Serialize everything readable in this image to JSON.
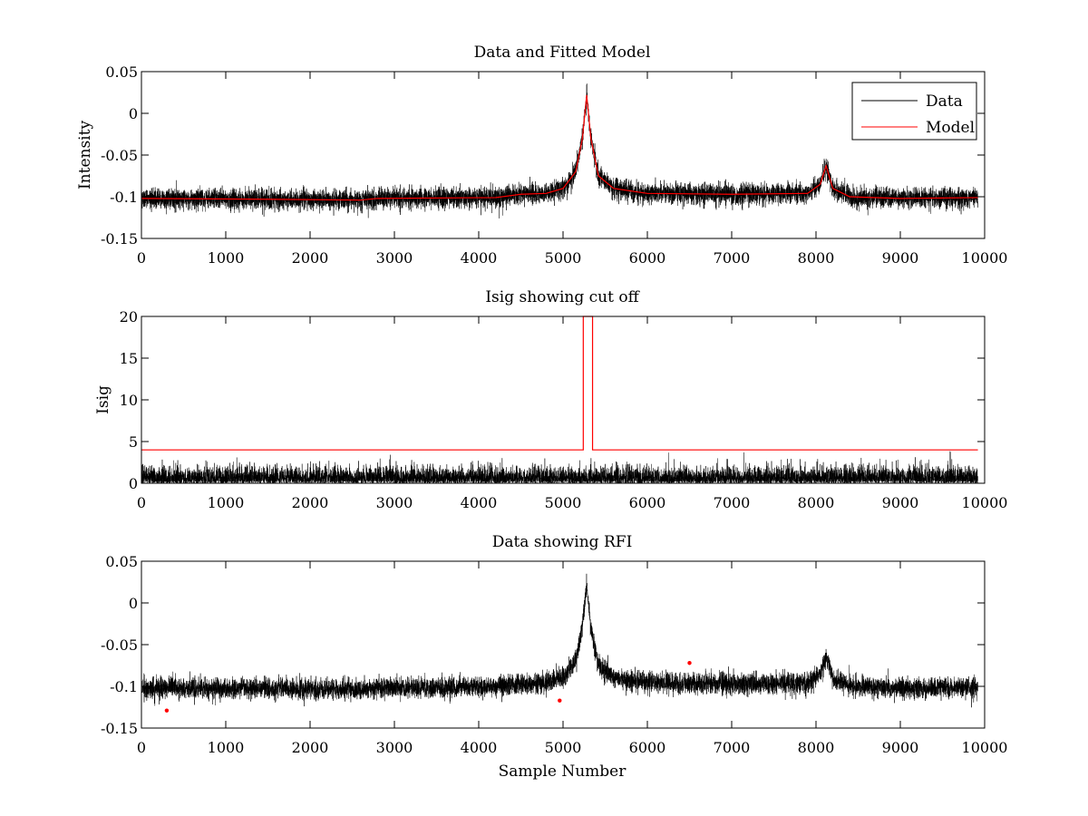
{
  "chart_data": [
    {
      "id": "p1",
      "type": "line",
      "title": "Data and Fitted Model",
      "xlabel": "",
      "ylabel": "Intensity",
      "xlim": [
        0,
        10000
      ],
      "ylim": [
        -0.15,
        0.05
      ],
      "xticks": [
        0,
        1000,
        2000,
        3000,
        4000,
        5000,
        6000,
        7000,
        8000,
        9000,
        10000
      ],
      "yticks": [
        -0.15,
        -0.1,
        -0.05,
        0,
        0.05
      ],
      "xtick_labels": [
        "0",
        "1000",
        "2000",
        "3000",
        "4000",
        "5000",
        "6000",
        "7000",
        "8000",
        "9000",
        "10000"
      ],
      "ytick_labels": [
        "-0.15",
        "-0.1",
        "-0.05",
        "0",
        "0.05"
      ],
      "legend": {
        "position": "top-right",
        "entries": [
          {
            "label": "Data",
            "color": "#000000"
          },
          {
            "label": "Model",
            "color": "#ff0000"
          }
        ]
      },
      "series": [
        {
          "name": "Data",
          "color": "#000000",
          "kind": "noisy",
          "n_samples": 9920,
          "noise_std": 0.006,
          "x": [
            0,
            1500,
            2600,
            2800,
            4200,
            4500,
            4800,
            5000,
            5150,
            5230,
            5280,
            5330,
            5420,
            5600,
            6000,
            7000,
            7900,
            8050,
            8120,
            8200,
            8400,
            9000,
            9920
          ],
          "y": [
            -0.102,
            -0.103,
            -0.104,
            -0.102,
            -0.101,
            -0.097,
            -0.096,
            -0.09,
            -0.07,
            -0.03,
            0.022,
            -0.03,
            -0.075,
            -0.09,
            -0.096,
            -0.097,
            -0.096,
            -0.085,
            -0.063,
            -0.09,
            -0.1,
            -0.102,
            -0.101
          ]
        },
        {
          "name": "Model",
          "color": "#ff0000",
          "kind": "line",
          "x": [
            0,
            1500,
            2600,
            2800,
            4200,
            4500,
            4800,
            5000,
            5150,
            5230,
            5280,
            5330,
            5420,
            5600,
            6000,
            7000,
            7900,
            8050,
            8120,
            8200,
            8400,
            9000,
            9920
          ],
          "y": [
            -0.102,
            -0.103,
            -0.104,
            -0.102,
            -0.101,
            -0.097,
            -0.096,
            -0.09,
            -0.07,
            -0.03,
            0.022,
            -0.03,
            -0.075,
            -0.09,
            -0.096,
            -0.097,
            -0.096,
            -0.085,
            -0.063,
            -0.09,
            -0.1,
            -0.102,
            -0.101
          ]
        }
      ]
    },
    {
      "id": "p2",
      "type": "line",
      "title": "Isig showing cut off",
      "xlabel": "",
      "ylabel": "Isig",
      "xlim": [
        0,
        10000
      ],
      "ylim": [
        0,
        20
      ],
      "xticks": [
        0,
        1000,
        2000,
        3000,
        4000,
        5000,
        6000,
        7000,
        8000,
        9000,
        10000
      ],
      "yticks": [
        0,
        5,
        10,
        15,
        20
      ],
      "xtick_labels": [
        "0",
        "1000",
        "2000",
        "3000",
        "4000",
        "5000",
        "6000",
        "7000",
        "8000",
        "9000",
        "10000"
      ],
      "ytick_labels": [
        "0",
        "5",
        "10",
        "15",
        "20"
      ],
      "series": [
        {
          "name": "Isig",
          "color": "#000000",
          "kind": "abs-noise",
          "n_samples": 9920,
          "scale": 0.9
        },
        {
          "name": "Cut off",
          "color": "#ff0000",
          "kind": "line",
          "x": [
            0,
            5240,
            5240,
            5350,
            5350,
            9920
          ],
          "y": [
            4,
            4,
            20,
            20,
            4,
            4
          ]
        }
      ]
    },
    {
      "id": "p3",
      "type": "line",
      "title": "Data showing RFI",
      "xlabel": "Sample Number",
      "ylabel": "",
      "xlim": [
        0,
        10000
      ],
      "ylim": [
        -0.15,
        0.05
      ],
      "xticks": [
        0,
        1000,
        2000,
        3000,
        4000,
        5000,
        6000,
        7000,
        8000,
        9000,
        10000
      ],
      "yticks": [
        -0.15,
        -0.1,
        -0.05,
        0,
        0.05
      ],
      "xtick_labels": [
        "0",
        "1000",
        "2000",
        "3000",
        "4000",
        "5000",
        "6000",
        "7000",
        "8000",
        "9000",
        "10000"
      ],
      "ytick_labels": [
        "-0.15",
        "-0.1",
        "-0.05",
        "0",
        "0.05"
      ],
      "series": [
        {
          "name": "Data",
          "color": "#000000",
          "kind": "noisy",
          "n_samples": 9920,
          "noise_std": 0.006,
          "x": [
            0,
            1500,
            2600,
            2800,
            4200,
            4500,
            4800,
            5000,
            5150,
            5230,
            5280,
            5330,
            5420,
            5600,
            6000,
            7000,
            7900,
            8050,
            8120,
            8200,
            8400,
            9000,
            9920
          ],
          "y": [
            -0.102,
            -0.103,
            -0.104,
            -0.102,
            -0.101,
            -0.097,
            -0.096,
            -0.09,
            -0.07,
            -0.03,
            0.022,
            -0.03,
            -0.075,
            -0.09,
            -0.096,
            -0.097,
            -0.096,
            -0.085,
            -0.063,
            -0.09,
            -0.1,
            -0.102,
            -0.101
          ]
        },
        {
          "name": "RFI",
          "color": "#ff0000",
          "kind": "markers",
          "x": [
            300,
            4960,
            6500
          ],
          "y": [
            -0.129,
            -0.117,
            -0.072
          ]
        }
      ]
    }
  ]
}
